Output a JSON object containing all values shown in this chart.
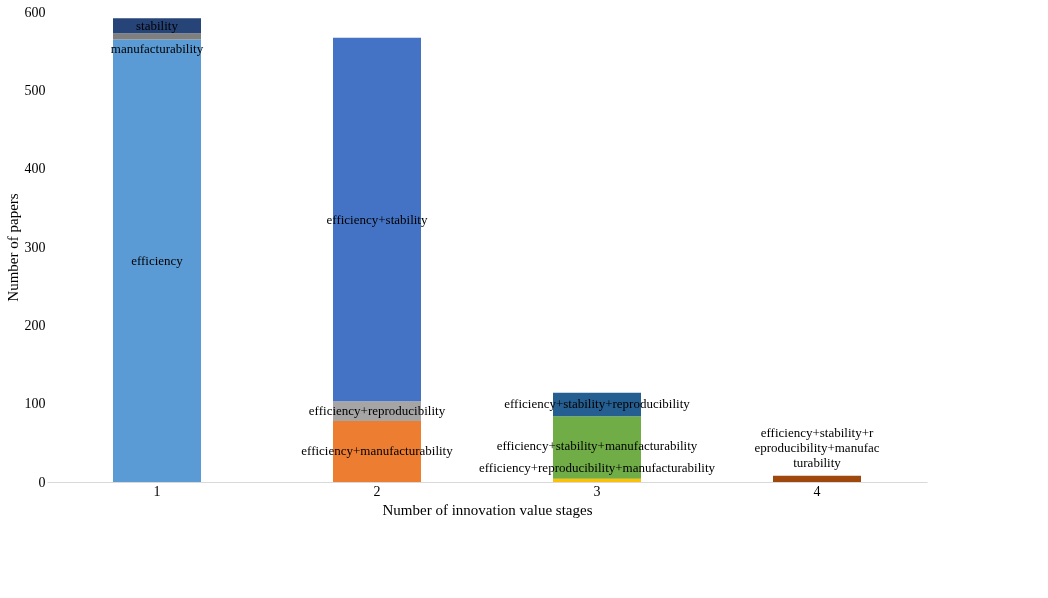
{
  "chart_data": {
    "type": "bar",
    "stacked": true,
    "xlabel": "Number of innovation value stages",
    "ylabel": "Number of papers",
    "categories": [
      "1",
      "2",
      "3",
      "4"
    ],
    "ylim": [
      0,
      600
    ],
    "yticks": [
      0,
      100,
      200,
      300,
      400,
      500,
      600
    ],
    "grid": false,
    "legend": false,
    "series": [
      {
        "name": "efficiency",
        "color": "#5b9bd5",
        "values": [
          565,
          null,
          null,
          null
        ]
      },
      {
        "name": "manufacturability",
        "color": "#7f7f7f",
        "values": [
          8,
          null,
          null,
          null
        ]
      },
      {
        "name": "stability",
        "color": "#264478",
        "values": [
          19,
          null,
          null,
          null
        ]
      },
      {
        "name": "efficiency+manufacturability",
        "color": "#ed7d31",
        "values": [
          null,
          78,
          null,
          null
        ]
      },
      {
        "name": "efficiency+reproducibility",
        "color": "#a5a5a5",
        "values": [
          null,
          25,
          null,
          null
        ]
      },
      {
        "name": "efficiency+stability",
        "color": "#4472c4",
        "values": [
          null,
          464,
          null,
          null
        ]
      },
      {
        "name": "efficiency+reproducibility+manufacturability",
        "color": "#ffc000",
        "values": [
          null,
          null,
          4,
          null
        ]
      },
      {
        "name": "efficiency+stability+manufacturability",
        "color": "#70ad47",
        "values": [
          null,
          null,
          80,
          null
        ]
      },
      {
        "name": "efficiency+stability+reproducibility",
        "color": "#255e91",
        "values": [
          null,
          null,
          30,
          null
        ]
      },
      {
        "name": "efficiency+stability+reproducibility+manufacturability",
        "color": "#9e480e",
        "values": [
          null,
          null,
          null,
          8
        ]
      }
    ]
  }
}
